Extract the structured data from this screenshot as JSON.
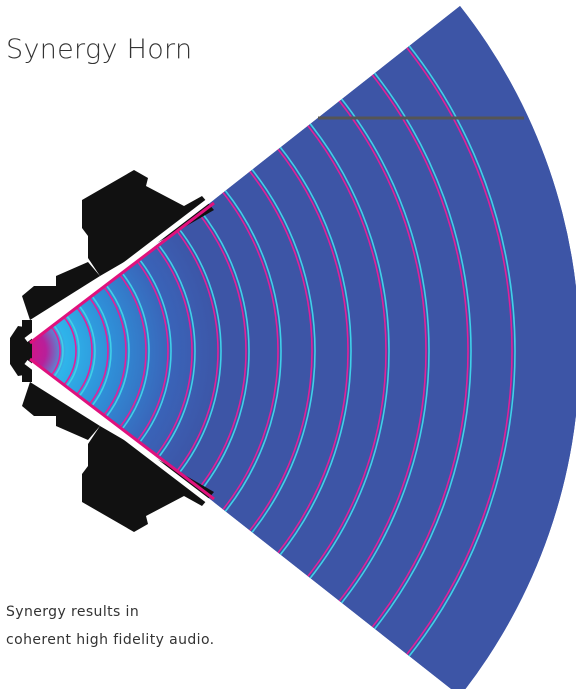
{
  "title": "Synergy Horn",
  "caption": {
    "line1": "Synergy results in",
    "line2": "coherent high fidelity audio."
  },
  "colors": {
    "wave_field": "#3d55a6",
    "throat_hot": "#e0117d",
    "near_field": "#2f9fe0",
    "wavefront_cyan": "#40d0e8",
    "wavefront_magenta": "#e0219a",
    "horn_wall": "#e0117d",
    "driver_body": "#111111",
    "reference_line": "#555555"
  },
  "icons": {
    "horn": "horn-cross-section",
    "driver": "driver-silhouette"
  }
}
